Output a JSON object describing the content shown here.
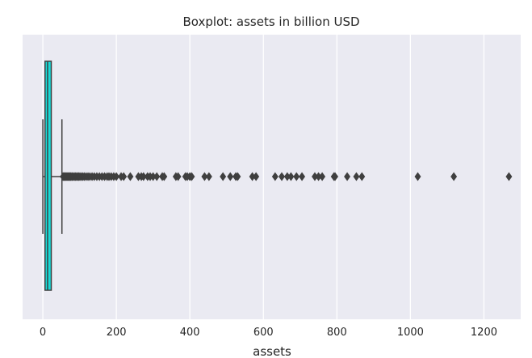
{
  "chart_data": {
    "type": "boxplot",
    "orientation": "horizontal",
    "title": "Boxplot: assets in billion USD",
    "xlabel": "assets",
    "ylabel": "",
    "xlim": [
      -55,
      1300
    ],
    "xticks": [
      0,
      200,
      400,
      600,
      800,
      1000,
      1200
    ],
    "grid": true,
    "colors": {
      "background": "#eaeaf2",
      "box_fill": "#18dcd8",
      "line": "#3f3f3f",
      "grid": "#ffffff"
    },
    "series": [
      {
        "whisker_low": 0.1,
        "q1": 6,
        "median": 13,
        "q3": 23,
        "whisker_high": 52,
        "outliers": [
          55,
          57,
          59,
          61,
          63,
          65,
          67,
          69,
          71,
          73,
          75,
          77,
          80,
          83,
          86,
          89,
          92,
          95,
          98,
          101,
          105,
          109,
          113,
          118,
          123,
          128,
          134,
          140,
          147,
          154,
          161,
          168,
          175,
          180,
          186,
          193,
          200,
          213,
          220,
          238,
          260,
          268,
          274,
          285,
          292,
          300,
          310,
          325,
          330,
          362,
          368,
          388,
          393,
          400,
          405,
          440,
          452,
          490,
          510,
          525,
          530,
          570,
          580,
          632,
          650,
          665,
          675,
          690,
          705,
          740,
          750,
          760,
          792,
          795,
          828,
          853,
          868,
          1020,
          1118,
          1268
        ]
      }
    ]
  }
}
